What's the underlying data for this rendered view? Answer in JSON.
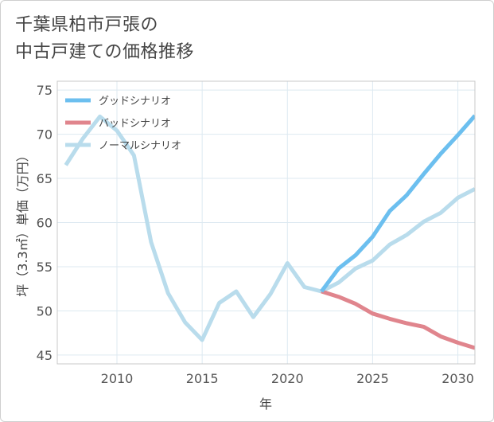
{
  "title_lines": [
    "千葉県柏市戸張の",
    "中古戸建ての価格推移"
  ],
  "chart_data": {
    "type": "line",
    "title": "千葉県柏市戸張の中古戸建ての価格推移",
    "xlabel": "年",
    "ylabel": "坪（3.3㎡）単価（万円）",
    "xlim": [
      2006.5,
      2031
    ],
    "ylim": [
      44,
      76
    ],
    "x_ticks": [
      2010,
      2015,
      2020,
      2025,
      2030
    ],
    "y_ticks": [
      45,
      50,
      55,
      60,
      65,
      70,
      75
    ],
    "grid": true,
    "legend_position": "top-left",
    "series": [
      {
        "name": "グッドシナリオ",
        "color": "#6cbfef",
        "x": [
          2022,
          2023,
          2024,
          2025,
          2026,
          2027,
          2028,
          2029,
          2030,
          2031
        ],
        "y": [
          52.2,
          54.8,
          56.3,
          58.4,
          61.3,
          63.1,
          65.5,
          67.8,
          69.9,
          72.1
        ]
      },
      {
        "name": "バッドシナリオ",
        "color": "#e0858d",
        "x": [
          2022,
          2023,
          2024,
          2025,
          2026,
          2027,
          2028,
          2029,
          2030,
          2031
        ],
        "y": [
          52.2,
          51.6,
          50.8,
          49.7,
          49.1,
          48.6,
          48.2,
          47.1,
          46.4,
          45.8
        ]
      },
      {
        "name": "ノーマルシナリオ",
        "color": "#b9dcec",
        "x": [
          2007,
          2008,
          2009,
          2010,
          2011,
          2012,
          2013,
          2014,
          2015,
          2016,
          2017,
          2018,
          2019,
          2020,
          2021,
          2022,
          2023,
          2024,
          2025,
          2026,
          2027,
          2028,
          2029,
          2030,
          2031
        ],
        "y": [
          66.5,
          69.5,
          72.0,
          70.4,
          67.6,
          57.8,
          52.0,
          48.7,
          46.7,
          50.9,
          52.2,
          49.3,
          51.9,
          55.4,
          52.7,
          52.2,
          53.2,
          54.8,
          55.7,
          57.5,
          58.6,
          60.1,
          61.1,
          62.8,
          63.8
        ]
      }
    ]
  }
}
